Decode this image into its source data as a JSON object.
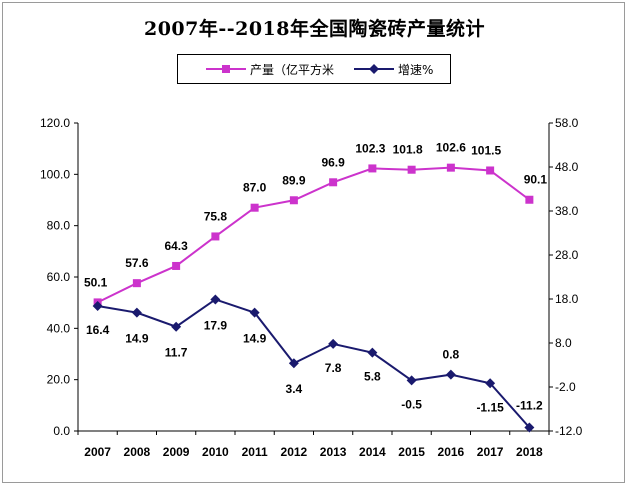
{
  "chart_data": {
    "type": "line",
    "title": "2007年--2018年全国陶瓷砖产量统计",
    "categories": [
      "2007",
      "2008",
      "2009",
      "2010",
      "2011",
      "2012",
      "2013",
      "2014",
      "2015",
      "2016",
      "2017",
      "2018"
    ],
    "series": [
      {
        "name": "产量（亿平方米",
        "axis": "left",
        "color": "#cc33cc",
        "marker": "square",
        "values": [
          50.1,
          57.6,
          64.3,
          75.8,
          87.0,
          89.9,
          96.9,
          102.3,
          101.8,
          102.6,
          101.5,
          90.1
        ],
        "labels": [
          "50.1",
          "57.6",
          "64.3",
          "75.8",
          "87.0",
          "89.9",
          "96.9",
          "102.3",
          "101.8",
          "102.6",
          "101.5",
          "90.1"
        ]
      },
      {
        "name": "增速%",
        "axis": "right",
        "color": "#1a1a6e",
        "marker": "diamond",
        "values": [
          16.4,
          14.9,
          11.7,
          17.9,
          14.9,
          3.4,
          7.8,
          5.8,
          -0.5,
          0.8,
          -1.15,
          -11.2
        ],
        "labels": [
          "16.4",
          "14.9",
          "11.7",
          "17.9",
          "14.9",
          "3.4",
          "7.8",
          "5.8",
          "-0.5",
          "0.8",
          "-1.15",
          "-11.2"
        ]
      }
    ],
    "left_axis": {
      "ylim": [
        0,
        120
      ],
      "ticks": [
        "0.0",
        "20.0",
        "40.0",
        "60.0",
        "80.0",
        "100.0",
        "120.0"
      ]
    },
    "right_axis": {
      "ylim": [
        -12,
        58
      ],
      "ticks": [
        "-12.0",
        "-2.0",
        "8.0",
        "18.0",
        "28.0",
        "38.0",
        "48.0",
        "58.0"
      ]
    },
    "grid": false,
    "legend_position": "top-center"
  }
}
